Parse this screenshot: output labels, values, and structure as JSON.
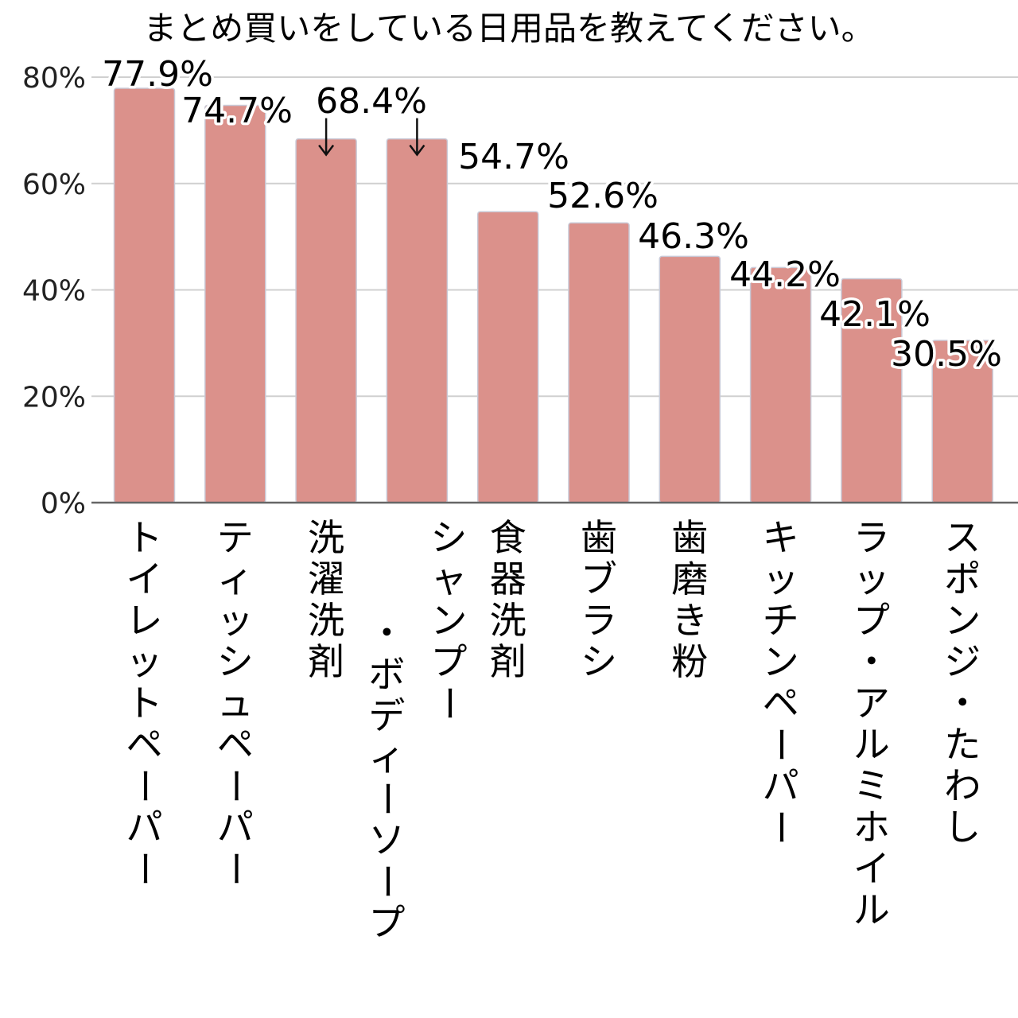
{
  "chart_data": {
    "type": "bar",
    "title": "まとめ買いをしている日用品を教えてください。",
    "xlabel": "",
    "ylabel": "",
    "ylim": [
      0,
      80
    ],
    "yticks": [
      "0%",
      "20%",
      "40%",
      "60%",
      "80%"
    ],
    "grid": true,
    "legend": "none",
    "categories": [
      "トイレットペーパー",
      "ティッシュペーパー",
      "洗濯洗剤",
      "シャンプー・ボディーソープ",
      "食器洗剤",
      "歯ブラシ",
      "歯磨き粉",
      "キッチンペーパー",
      "ラップ・アルミホイル",
      "スポンジ・たわし"
    ],
    "values": [
      77.9,
      74.7,
      68.4,
      68.4,
      54.7,
      52.6,
      46.3,
      44.2,
      42.1,
      30.5
    ],
    "labels": [
      "77.9%",
      "74.7%",
      "68.4%",
      "",
      "54.7%",
      "52.6%",
      "46.3%",
      "44.2%",
      "42.1%",
      "30.5%"
    ],
    "bar_color": "#db918b",
    "grid_color": "#d0d0d0",
    "axis_color": "#666666"
  }
}
